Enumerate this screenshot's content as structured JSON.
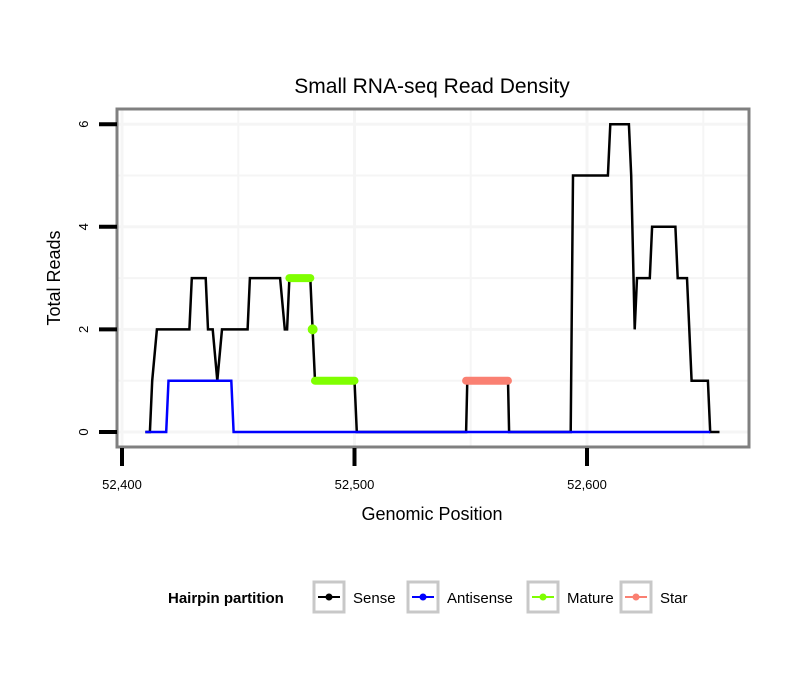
{
  "chart_data": {
    "type": "line",
    "title": "Small RNA-seq Read Density",
    "xlabel": "Genomic Position",
    "ylabel": "Total Reads",
    "xlim": [
      52380,
      52672
    ],
    "ylim": [
      -0.3,
      6.3
    ],
    "x_ticks": [
      52400,
      52500,
      52600
    ],
    "x_tick_labels": [
      "52,400",
      "52,500",
      "52,600"
    ],
    "y_ticks": [
      0,
      2,
      4,
      6
    ],
    "y_tick_labels": [
      "0",
      "2",
      "4",
      "6"
    ],
    "grid": true,
    "legend": {
      "title": "Hairpin partition",
      "position": "bottom",
      "entries": [
        {
          "name": "Sense",
          "color": "#000000"
        },
        {
          "name": "Antisense",
          "color": "#0000ff"
        },
        {
          "name": "Mature",
          "color": "#7fff00"
        },
        {
          "name": "Star",
          "color": "#fa8072"
        }
      ]
    },
    "series": [
      {
        "name": "Sense",
        "color": "#000000",
        "x": [
          52410,
          52412,
          52413,
          52415,
          52429,
          52430,
          52436,
          52437,
          52439,
          52441,
          52443,
          52454,
          52455,
          52468,
          52470,
          52471,
          52472,
          52481,
          52482,
          52483,
          52500,
          52501,
          52548,
          52548.5,
          52566,
          52566.5,
          52593,
          52594,
          52609,
          52610,
          52618,
          52619,
          52620.5,
          52621.5,
          52627,
          52628,
          52638,
          52639,
          52643,
          52645,
          52652,
          52653,
          52657
        ],
        "y": [
          0,
          0,
          1,
          2,
          2,
          3,
          3,
          2,
          2,
          1,
          2,
          2,
          3,
          3,
          2,
          2,
          3,
          3,
          2,
          1,
          1,
          0,
          0,
          1,
          1,
          0,
          0,
          5,
          5,
          6,
          6,
          5,
          2,
          3,
          3,
          4,
          4,
          3,
          3,
          1,
          1,
          0,
          0
        ]
      },
      {
        "name": "Antisense",
        "color": "#0000ff",
        "x": [
          52410,
          52419,
          52420,
          52447,
          52448,
          52653
        ],
        "y": [
          0,
          0,
          1,
          1,
          0,
          0
        ]
      },
      {
        "name": "Mature",
        "color": "#7fff00",
        "segments": [
          {
            "x": [
              52472,
              52481
            ],
            "y": [
              3,
              3
            ]
          },
          {
            "x": [
              52482,
              52482
            ],
            "y": [
              2,
              2
            ]
          },
          {
            "x": [
              52483,
              52500
            ],
            "y": [
              1,
              1
            ]
          }
        ]
      },
      {
        "name": "Star",
        "color": "#fa8072",
        "segments": [
          {
            "x": [
              52548,
              52566
            ],
            "y": [
              1,
              1
            ]
          }
        ]
      }
    ]
  }
}
